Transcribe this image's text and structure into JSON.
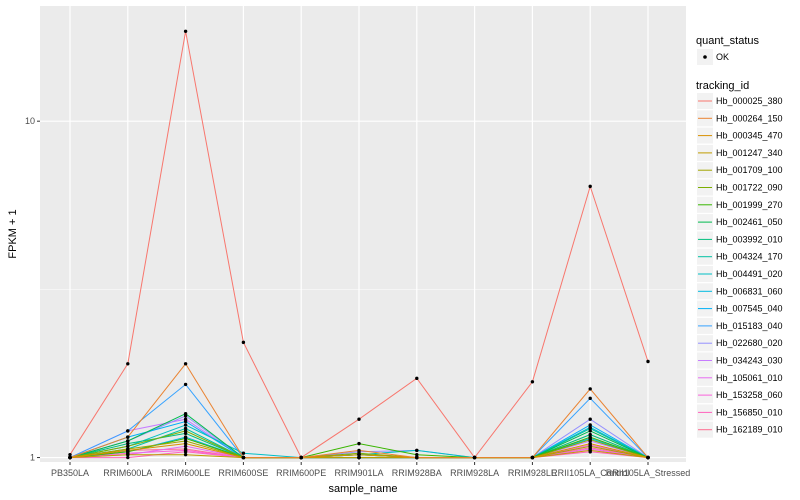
{
  "chart_data": {
    "type": "line",
    "xlabel": "sample_name",
    "ylabel": "FPKM + 1",
    "yscale": "log10",
    "ylim": [
      0.97,
      22
    ],
    "y_ticks": [
      {
        "value": 1,
        "label": "1"
      },
      {
        "value": 10,
        "label": "10"
      }
    ],
    "categories": [
      "PB350LA",
      "RRIM600LA",
      "RRIM600LE",
      "RRIM600SE",
      "RRIM600PE",
      "RRIM901LA",
      "RRIM928BA",
      "RRIM928LA",
      "RRIM928LE",
      "RRII105LA_Control",
      "RRII105LA_Stressed"
    ],
    "grid": true,
    "legend": {
      "position": "right",
      "quant_title": "quant_status",
      "quant_items": [
        {
          "label": "OK",
          "symbol": "point"
        }
      ],
      "tracking_title": "tracking_id"
    },
    "series": [
      {
        "name": "Hb_000025_380",
        "color": "#F8766D",
        "values": [
          1.02,
          1.9,
          18.5,
          2.2,
          1.0,
          1.3,
          1.72,
          1.0,
          1.68,
          6.4,
          1.93
        ]
      },
      {
        "name": "Hb_000264_150",
        "color": "#EA8331",
        "values": [
          1.0,
          1.15,
          1.9,
          1.0,
          1.0,
          1.05,
          1.0,
          1.0,
          1.0,
          1.6,
          1.0
        ]
      },
      {
        "name": "Hb_000345_470",
        "color": "#D89000",
        "values": [
          1.0,
          1.05,
          1.1,
          1.0,
          1.0,
          1.02,
          1.0,
          1.0,
          1.0,
          1.1,
          1.0
        ]
      },
      {
        "name": "Hb_001247_340",
        "color": "#C09B00",
        "values": [
          1.0,
          1.02,
          1.02,
          1.0,
          1.0,
          1.0,
          1.0,
          1.0,
          1.0,
          1.05,
          1.0
        ]
      },
      {
        "name": "Hb_001709_100",
        "color": "#A3A500",
        "values": [
          1.0,
          1.06,
          1.12,
          1.0,
          1.0,
          1.0,
          1.0,
          1.0,
          1.0,
          1.08,
          1.0
        ]
      },
      {
        "name": "Hb_001722_090",
        "color": "#7CAE00",
        "values": [
          1.0,
          1.08,
          1.2,
          1.0,
          1.0,
          1.03,
          1.0,
          1.0,
          1.0,
          1.13,
          1.0
        ]
      },
      {
        "name": "Hb_001999_270",
        "color": "#39B600",
        "values": [
          1.0,
          1.04,
          1.14,
          1.0,
          1.0,
          1.1,
          1.02,
          1.0,
          1.0,
          1.15,
          1.0
        ]
      },
      {
        "name": "Hb_002461_050",
        "color": "#00BB4E",
        "values": [
          1.0,
          1.12,
          1.35,
          1.0,
          1.0,
          1.02,
          1.0,
          1.0,
          1.0,
          1.2,
          1.0
        ]
      },
      {
        "name": "Hb_003992_010",
        "color": "#00BF7D",
        "values": [
          1.0,
          1.1,
          1.18,
          1.0,
          1.0,
          1.0,
          1.0,
          1.0,
          1.0,
          1.17,
          1.0
        ]
      },
      {
        "name": "Hb_004324_170",
        "color": "#00C1A3",
        "values": [
          1.0,
          1.06,
          1.22,
          1.0,
          1.0,
          1.0,
          1.0,
          1.0,
          1.0,
          1.22,
          1.0
        ]
      },
      {
        "name": "Hb_004491_020",
        "color": "#00BFC4",
        "values": [
          1.0,
          1.08,
          1.25,
          1.03,
          1.0,
          1.02,
          1.05,
          1.0,
          1.0,
          1.23,
          1.0
        ]
      },
      {
        "name": "Hb_006831_060",
        "color": "#00BAE0",
        "values": [
          1.0,
          1.04,
          1.15,
          1.0,
          1.0,
          1.0,
          1.0,
          1.0,
          1.0,
          1.14,
          1.0
        ]
      },
      {
        "name": "Hb_007545_040",
        "color": "#00B0F6",
        "values": [
          1.0,
          1.15,
          1.28,
          1.0,
          1.0,
          1.02,
          1.0,
          1.0,
          1.0,
          1.25,
          1.0
        ]
      },
      {
        "name": "Hb_015183_040",
        "color": "#35A2FF",
        "values": [
          1.0,
          1.2,
          1.65,
          1.0,
          1.0,
          1.0,
          1.0,
          1.0,
          1.0,
          1.5,
          1.0
        ]
      },
      {
        "name": "Hb_022680_020",
        "color": "#9590FF",
        "values": [
          1.0,
          1.12,
          1.33,
          1.0,
          1.0,
          1.04,
          1.05,
          1.0,
          1.0,
          1.3,
          1.0
        ]
      },
      {
        "name": "Hb_034243_030",
        "color": "#C77CFF",
        "values": [
          1.0,
          1.2,
          1.3,
          1.0,
          1.0,
          1.0,
          1.0,
          1.0,
          1.0,
          1.12,
          1.0
        ]
      },
      {
        "name": "Hb_105061_010",
        "color": "#E76BF3",
        "values": [
          1.0,
          1.02,
          1.08,
          1.0,
          1.0,
          1.0,
          1.0,
          1.0,
          1.0,
          1.06,
          1.0
        ]
      },
      {
        "name": "Hb_153258_060",
        "color": "#FA62DB",
        "values": [
          1.0,
          1.03,
          1.05,
          1.0,
          1.0,
          1.0,
          1.0,
          1.0,
          1.0,
          1.09,
          1.0
        ]
      },
      {
        "name": "Hb_156850_010",
        "color": "#FF62BC",
        "values": [
          1.0,
          1.0,
          1.04,
          1.0,
          1.0,
          1.0,
          1.0,
          1.0,
          1.0,
          1.04,
          1.0
        ]
      },
      {
        "name": "Hb_162189_010",
        "color": "#FF6C91",
        "values": [
          1.0,
          1.05,
          1.06,
          1.0,
          1.0,
          1.0,
          1.0,
          1.0,
          1.0,
          1.07,
          1.0
        ]
      }
    ]
  }
}
